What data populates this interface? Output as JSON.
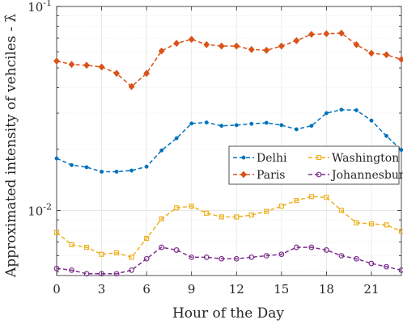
{
  "chart_data": {
    "type": "line",
    "xlabel": "Hour of the Day",
    "ylabel": "Approximated intensity of vehciles - λ̂",
    "x": [
      0,
      1,
      2,
      3,
      4,
      5,
      6,
      7,
      8,
      9,
      10,
      11,
      12,
      13,
      14,
      15,
      16,
      17,
      18,
      19,
      20,
      21,
      22,
      23
    ],
    "xlim": [
      0,
      23
    ],
    "xticks": [
      0,
      3,
      6,
      9,
      12,
      15,
      18,
      21
    ],
    "ylim": [
      0.0048,
      0.1
    ],
    "yscale": "log",
    "yticks": [
      0.01,
      0.1
    ],
    "ytick_labels": [
      {
        "base": "10",
        "exp": "-2"
      },
      {
        "base": "10",
        "exp": "-1"
      }
    ],
    "grid": true,
    "legend": {
      "placement": "right",
      "columns": 2
    },
    "series": [
      {
        "name": "Delhi",
        "color": "#0072BD",
        "marker": "dot",
        "values": [
          0.018,
          0.0167,
          0.0163,
          0.0155,
          0.0155,
          0.0157,
          0.0164,
          0.0197,
          0.0226,
          0.0267,
          0.027,
          0.026,
          0.0262,
          0.0266,
          0.0269,
          0.0262,
          0.025,
          0.026,
          0.03,
          0.0312,
          0.031,
          0.0276,
          0.0232,
          0.0198
        ]
      },
      {
        "name": "Washington",
        "color": "#EDB120",
        "marker": "square",
        "values": [
          0.0078,
          0.0068,
          0.0066,
          0.0061,
          0.0062,
          0.0059,
          0.0073,
          0.0091,
          0.0103,
          0.0105,
          0.0097,
          0.0093,
          0.0093,
          0.0095,
          0.0099,
          0.0105,
          0.0112,
          0.0117,
          0.0116,
          0.01,
          0.0087,
          0.0086,
          0.0085,
          0.0079
        ]
      },
      {
        "name": "Paris",
        "color": "#D95319",
        "marker": "diamond",
        "values": [
          0.054,
          0.052,
          0.0515,
          0.0505,
          0.047,
          0.0405,
          0.047,
          0.0605,
          0.066,
          0.069,
          0.065,
          0.064,
          0.064,
          0.0615,
          0.061,
          0.064,
          0.068,
          0.073,
          0.0735,
          0.074,
          0.065,
          0.059,
          0.058,
          0.055
        ]
      },
      {
        "name": "Johannesburg",
        "color": "#7E2F8E",
        "marker": "circle",
        "values": [
          0.0052,
          0.0051,
          0.0049,
          0.0049,
          0.0049,
          0.0051,
          0.0058,
          0.0066,
          0.0064,
          0.0059,
          0.0059,
          0.0058,
          0.0058,
          0.0059,
          0.006,
          0.0061,
          0.0066,
          0.0066,
          0.0064,
          0.006,
          0.0058,
          0.0055,
          0.0053,
          0.0051
        ]
      }
    ]
  }
}
